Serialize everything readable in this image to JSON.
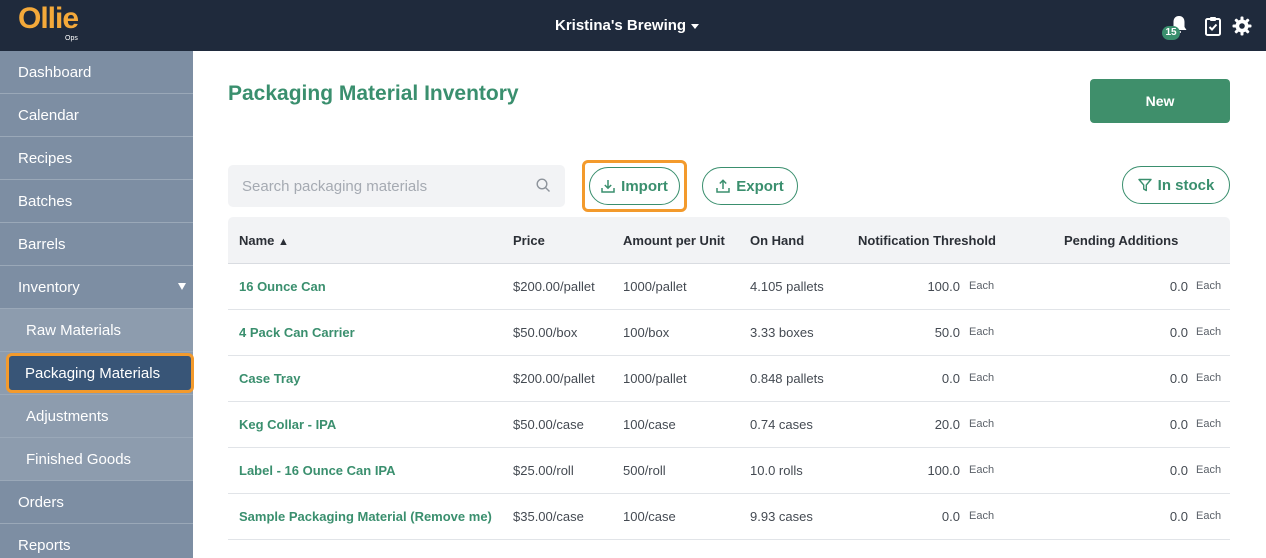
{
  "app": {
    "logo_text": "Ollie",
    "logo_sub": "Ops",
    "brewery": "Kristina's Brewing",
    "notification_count": "15"
  },
  "sidebar": {
    "items": [
      {
        "label": "Dashboard"
      },
      {
        "label": "Calendar"
      },
      {
        "label": "Recipes"
      },
      {
        "label": "Batches"
      },
      {
        "label": "Barrels"
      },
      {
        "label": "Inventory"
      },
      {
        "label": "Raw Materials"
      },
      {
        "label": "Packaging Materials"
      },
      {
        "label": "Adjustments"
      },
      {
        "label": "Finished Goods"
      },
      {
        "label": "Orders"
      },
      {
        "label": "Reports"
      }
    ]
  },
  "main": {
    "title": "Packaging Material Inventory",
    "new_label": "New",
    "search_placeholder": "Search packaging materials",
    "import_label": "Import",
    "export_label": "Export",
    "instock_label": "In stock"
  },
  "table": {
    "headers": {
      "name": "Name",
      "sort_indicator": "▲",
      "price": "Price",
      "amount": "Amount per Unit",
      "onhand": "On Hand",
      "threshold": "Notification Threshold",
      "pending": "Pending Additions"
    },
    "rows": [
      {
        "name": "16 Ounce Can",
        "price": "$200.00/pallet",
        "amount": "1000/pallet",
        "onhand": "4.105 pallets",
        "threshold": "100.0",
        "threshold_unit": "Each",
        "pending": "0.0",
        "pending_unit": "Each"
      },
      {
        "name": "4 Pack Can Carrier",
        "price": "$50.00/box",
        "amount": "100/box",
        "onhand": "3.33 boxes",
        "threshold": "50.0",
        "threshold_unit": "Each",
        "pending": "0.0",
        "pending_unit": "Each"
      },
      {
        "name": "Case Tray",
        "price": "$200.00/pallet",
        "amount": "1000/pallet",
        "onhand": "0.848 pallets",
        "threshold": "0.0",
        "threshold_unit": "Each",
        "pending": "0.0",
        "pending_unit": "Each"
      },
      {
        "name": "Keg Collar - IPA",
        "price": "$50.00/case",
        "amount": "100/case",
        "onhand": "0.74 cases",
        "threshold": "20.0",
        "threshold_unit": "Each",
        "pending": "0.0",
        "pending_unit": "Each"
      },
      {
        "name": "Label - 16 Ounce Can IPA",
        "price": "$25.00/roll",
        "amount": "500/roll",
        "onhand": "10.0 rolls",
        "threshold": "100.0",
        "threshold_unit": "Each",
        "pending": "0.0",
        "pending_unit": "Each"
      },
      {
        "name": "Sample Packaging Material (Remove me)",
        "price": "$35.00/case",
        "amount": "100/case",
        "onhand": "9.93 cases",
        "threshold": "0.0",
        "threshold_unit": "Each",
        "pending": "0.0",
        "pending_unit": "Each"
      }
    ]
  },
  "icons": {
    "bell": "bell-icon",
    "tasks": "clipboard-check-icon",
    "settings": "gear-icon",
    "search": "search-icon",
    "import": "download-icon",
    "export": "upload-icon",
    "filter": "filter-icon"
  },
  "colors": {
    "brand_orange": "#f4a93a",
    "accent_green": "#3a8f6e",
    "topbar": "#1f2a3c",
    "sidebar": "#7d8ea3",
    "highlight": "#f39a2c"
  }
}
